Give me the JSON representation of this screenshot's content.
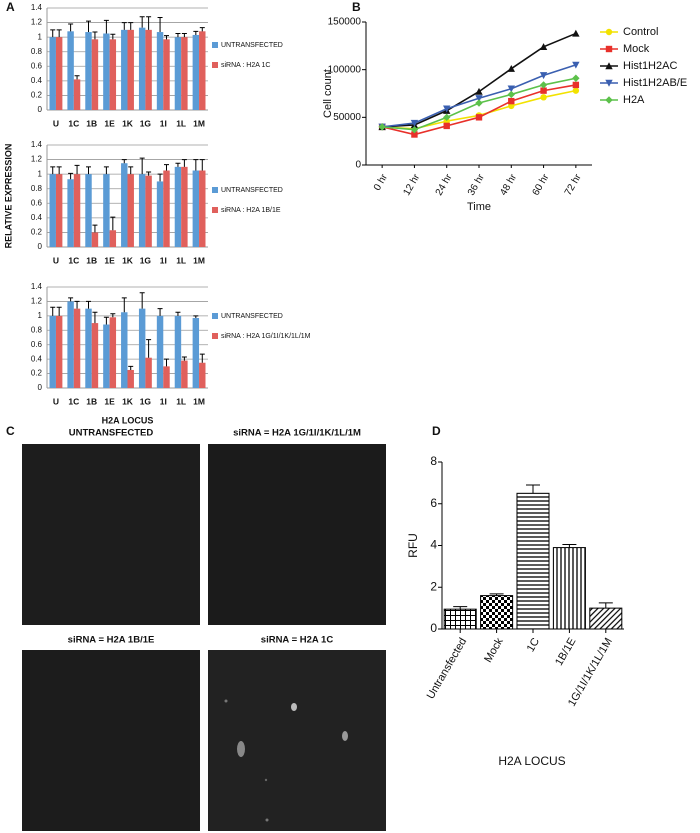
{
  "figure": {
    "panel_labels": [
      "A",
      "B",
      "C",
      "D"
    ],
    "micrograph_titles": [
      "UNTRANSFECTED",
      "siRNA = H2A 1G/1I/1K/1L/1M",
      "siRNA = H2A 1B/1E",
      "siRNA = H2A 1C"
    ]
  },
  "chart_data": [
    {
      "type": "bar",
      "categories": [
        "U",
        "1C",
        "1B",
        "1E",
        "1K",
        "1G",
        "1I",
        "1L",
        "1M"
      ],
      "ylim": [
        0,
        1.4
      ],
      "yticks": [
        0,
        0.2,
        0.4,
        0.6,
        0.8,
        1,
        1.2,
        1.4
      ],
      "grid": true,
      "series": [
        {
          "name": "UNTRANSFECTED",
          "color": "#5b9bd5",
          "values": [
            1.0,
            1.08,
            1.07,
            1.05,
            1.1,
            1.13,
            1.07,
            1.0,
            1.03
          ],
          "errors": [
            0.1,
            0.1,
            0.15,
            0.18,
            0.1,
            0.15,
            0.2,
            0.05,
            0.05
          ]
        },
        {
          "name": "siRNA : H2A 1C",
          "color": "#e0605c",
          "values": [
            1.0,
            0.42,
            0.97,
            0.97,
            1.1,
            1.1,
            0.97,
            1.0,
            1.08
          ],
          "errors": [
            0.1,
            0.05,
            0.1,
            0.07,
            0.1,
            0.18,
            0.05,
            0.05,
            0.05
          ]
        }
      ]
    },
    {
      "type": "bar",
      "categories": [
        "U",
        "1C",
        "1B",
        "1E",
        "1K",
        "1G",
        "1I",
        "1L",
        "1M"
      ],
      "ylim": [
        0,
        1.4
      ],
      "yticks": [
        0,
        0.2,
        0.4,
        0.6,
        0.8,
        1,
        1.2,
        1.4
      ],
      "grid": true,
      "y_label": "RELATIVE EXPRESSION",
      "series": [
        {
          "name": "UNTRANSFECTED",
          "color": "#5b9bd5",
          "values": [
            1.0,
            0.93,
            1.0,
            1.0,
            1.15,
            1.0,
            0.9,
            1.1,
            1.05
          ],
          "errors": [
            0.1,
            0.08,
            0.1,
            0.1,
            0.05,
            0.22,
            0.1,
            0.05,
            0.15
          ]
        },
        {
          "name": "siRNA : H2A 1B/1E",
          "color": "#e0605c",
          "values": [
            1.0,
            1.0,
            0.2,
            0.23,
            1.0,
            0.98,
            1.05,
            1.1,
            1.05
          ],
          "errors": [
            0.1,
            0.12,
            0.1,
            0.18,
            0.1,
            0.05,
            0.08,
            0.1,
            0.15
          ]
        }
      ]
    },
    {
      "type": "bar",
      "categories": [
        "U",
        "1C",
        "1B",
        "1E",
        "1K",
        "1G",
        "1I",
        "1L",
        "1M"
      ],
      "ylim": [
        0,
        1.4
      ],
      "yticks": [
        0,
        0.2,
        0.4,
        0.6,
        0.8,
        1,
        1.2,
        1.4
      ],
      "grid": true,
      "x_label": "H2A LOCUS",
      "series": [
        {
          "name": "UNTRANSFECTED",
          "color": "#5b9bd5",
          "values": [
            1.0,
            1.2,
            1.1,
            0.88,
            1.05,
            1.1,
            1.0,
            1.0,
            0.97
          ],
          "errors": [
            0.12,
            0.05,
            0.1,
            0.1,
            0.2,
            0.22,
            0.1,
            0.05,
            0.03
          ]
        },
        {
          "name": "siRNA : H2A 1G/1I/1K/1L/1M",
          "color": "#e0605c",
          "values": [
            1.0,
            1.1,
            0.9,
            0.98,
            0.25,
            0.42,
            0.3,
            0.38,
            0.35
          ],
          "errors": [
            0.12,
            0.1,
            0.15,
            0.05,
            0.05,
            0.25,
            0.1,
            0.05,
            0.12
          ]
        }
      ]
    },
    {
      "type": "line",
      "categories": [
        "0 hr",
        "12 hr",
        "24 hr",
        "36 hr",
        "48 hr",
        "60 hr",
        "72 hr"
      ],
      "x_label": "Time",
      "y_label": "Cell count",
      "ylim": [
        0,
        150000
      ],
      "yticks": [
        0,
        50000,
        100000,
        150000
      ],
      "series": [
        {
          "name": "Control",
          "color": "#f2e200",
          "marker": "circle",
          "values": [
            40000,
            38000,
            46000,
            52000,
            62000,
            71000,
            78000
          ]
        },
        {
          "name": "Mock",
          "color": "#e8302a",
          "marker": "square",
          "values": [
            40000,
            32000,
            41000,
            50000,
            67000,
            78000,
            84000
          ]
        },
        {
          "name": "Hist1H2AC",
          "color": "#111111",
          "marker": "triangle",
          "values": [
            40000,
            42000,
            57000,
            77000,
            101000,
            124000,
            138000
          ]
        },
        {
          "name": "Hist1H2AB/E",
          "color": "#3a5fb0",
          "marker": "triangle-down",
          "values": [
            40000,
            44000,
            59000,
            70000,
            80000,
            94000,
            105000
          ]
        },
        {
          "name": "H2A",
          "color": "#5cc14a",
          "marker": "diamond",
          "values": [
            40000,
            37000,
            50000,
            65000,
            74000,
            84000,
            91000
          ]
        }
      ]
    },
    {
      "type": "bar",
      "categories": [
        "Untransfected",
        "Mock",
        "1C",
        "1B/1E",
        "1G/1I/1K/1L/1M"
      ],
      "x_label": "H2A LOCUS",
      "y_label": "RFU",
      "values": [
        0.95,
        1.6,
        6.5,
        3.9,
        1.0
      ],
      "errors": [
        0.12,
        0.08,
        0.4,
        0.15,
        0.25
      ],
      "fill_patterns": [
        "grid",
        "checker",
        "horizontal",
        "vertical",
        "diagonal"
      ],
      "ylim": [
        0,
        8
      ],
      "yticks": [
        0,
        2,
        4,
        6,
        8
      ]
    }
  ]
}
